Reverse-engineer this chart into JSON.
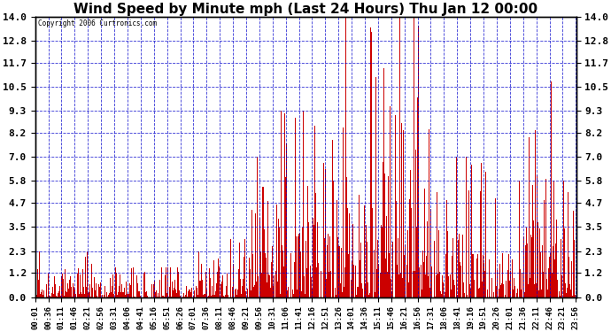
{
  "title": "Wind Speed by Minute mph (Last 24 Hours) Thu Jan 12 00:00",
  "copyright": "Copyright 2006 Curtronics.com",
  "yticks": [
    0.0,
    1.2,
    2.3,
    3.5,
    4.7,
    5.8,
    7.0,
    8.2,
    9.3,
    10.5,
    11.7,
    12.8,
    14.0
  ],
  "ymax": 14.0,
  "ymin": 0.0,
  "bar_color": "#CC0000",
  "background_color": "#FFFFFF",
  "grid_color": "#0000CC",
  "title_fontsize": 11,
  "xlabel_fontsize": 6.5,
  "ylabel_fontsize": 8,
  "xtick_labels": [
    "00:01",
    "00:36",
    "01:11",
    "01:46",
    "02:21",
    "02:56",
    "03:31",
    "04:06",
    "04:41",
    "05:16",
    "05:51",
    "06:26",
    "07:01",
    "07:36",
    "08:11",
    "08:46",
    "09:21",
    "09:56",
    "10:31",
    "11:06",
    "11:41",
    "12:16",
    "12:51",
    "13:26",
    "14:01",
    "14:36",
    "15:11",
    "15:46",
    "16:21",
    "16:56",
    "17:31",
    "18:06",
    "18:41",
    "19:16",
    "19:51",
    "20:26",
    "21:01",
    "21:36",
    "22:11",
    "22:46",
    "23:21",
    "23:56"
  ],
  "num_minutes": 1440,
  "figwidth": 6.9,
  "figheight": 3.75,
  "dpi": 100
}
